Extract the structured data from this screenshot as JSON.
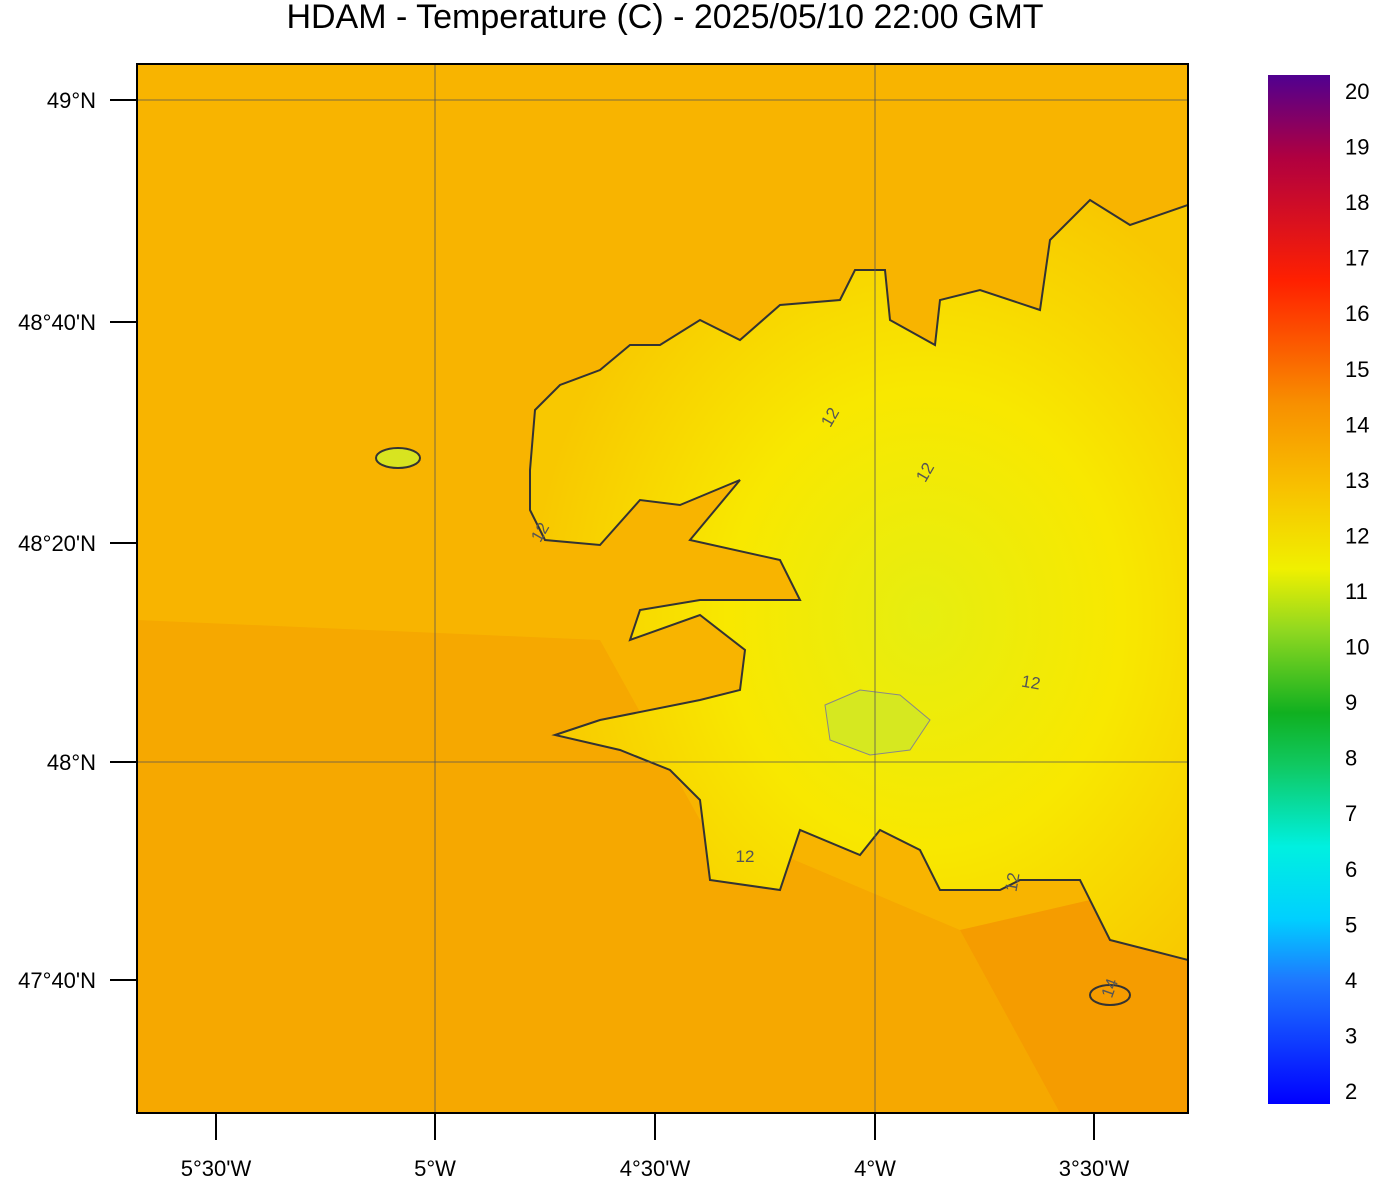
{
  "title": "HDAM - Temperature (C)  -  2025/05/10  22:00 GMT",
  "lat_ticks": [
    "49°N",
    "48°40'N",
    "48°20'N",
    "48°N",
    "47°40'N"
  ],
  "lon_ticks": [
    "5°30'W",
    "5°W",
    "4°30'W",
    "4°W",
    "3°30'W"
  ],
  "colorbar": {
    "ticks": [
      2,
      3,
      4,
      5,
      6,
      7,
      8,
      9,
      10,
      11,
      12,
      13,
      14,
      15,
      16,
      17,
      18,
      19,
      20
    ]
  },
  "contour_labels": [
    12,
    12,
    12,
    12,
    12,
    12,
    14
  ]
}
